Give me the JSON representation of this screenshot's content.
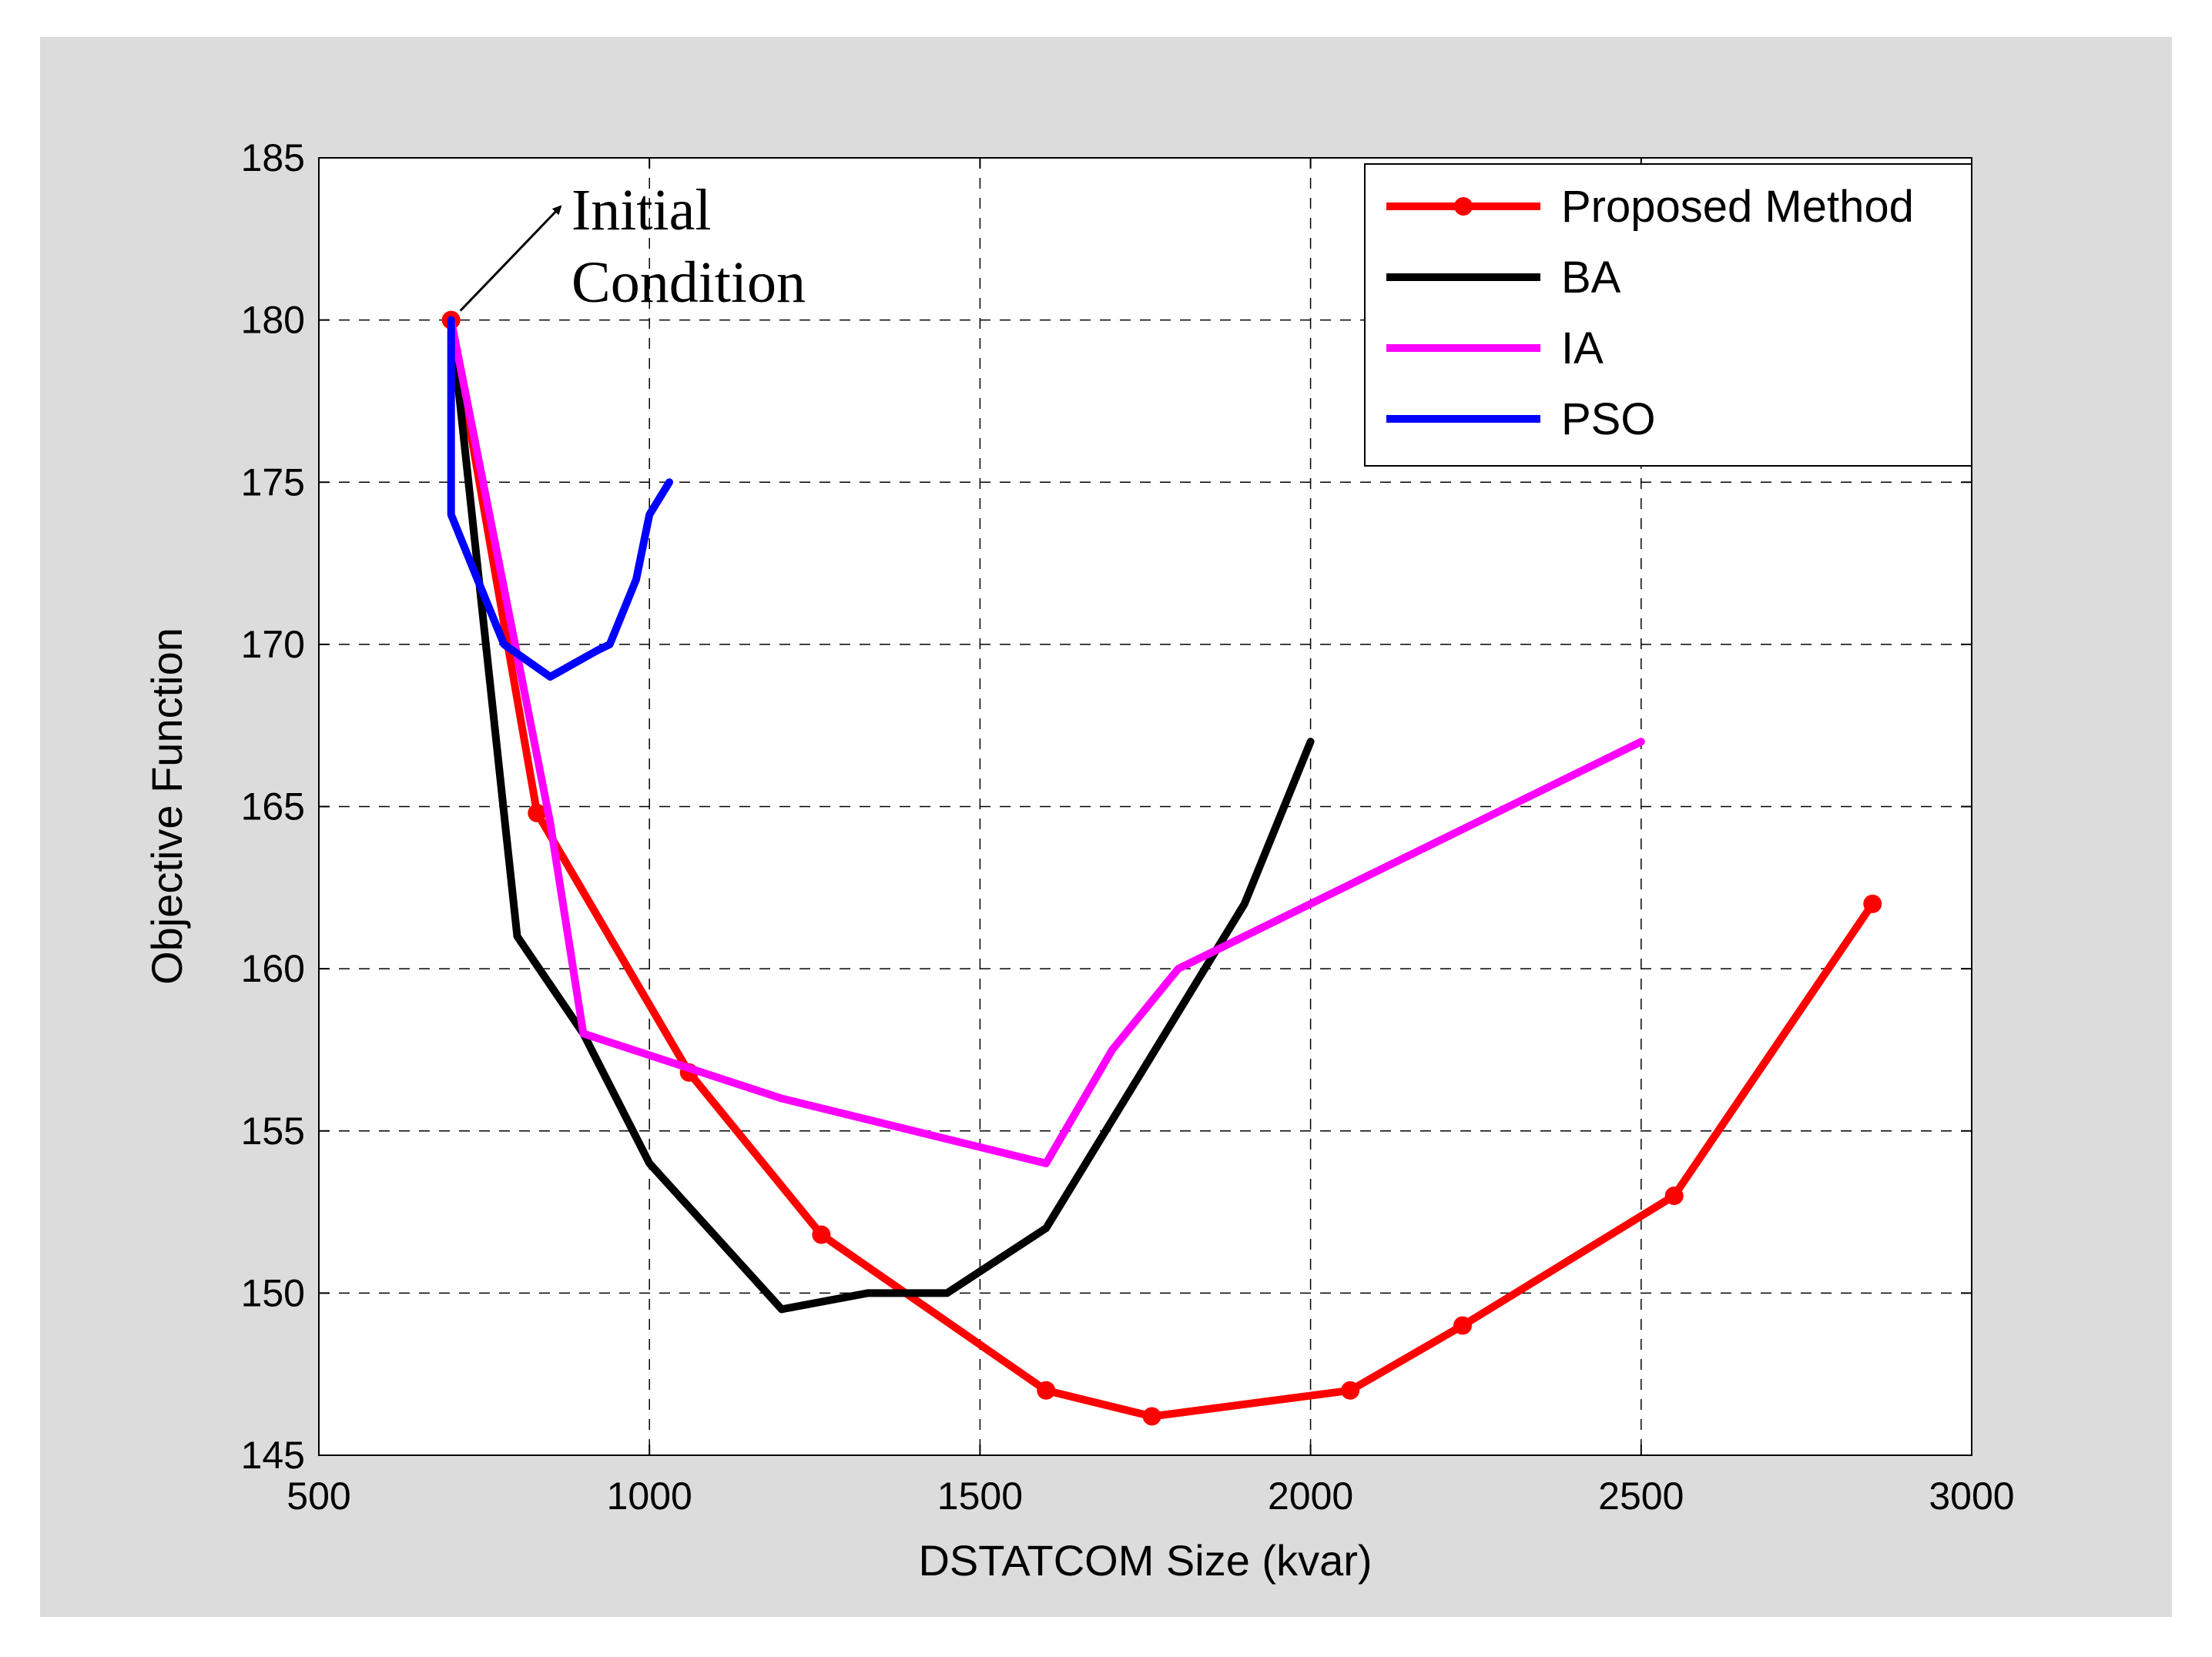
{
  "chart_data": {
    "type": "line",
    "title": "",
    "xlabel": "DSTATCOM Size (kvar)",
    "ylabel": "Objective Function",
    "xlim": [
      500,
      3000
    ],
    "ylim": [
      145,
      185
    ],
    "xticks": [
      500,
      1000,
      1500,
      2000,
      2500,
      3000
    ],
    "yticks": [
      145,
      150,
      155,
      160,
      165,
      170,
      175,
      180,
      185
    ],
    "grid": true,
    "legend_position": "top-right",
    "series": [
      {
        "name": "Proposed Method",
        "color": "#ff0000",
        "marker": "dot",
        "x": [
          700,
          830,
          1060,
          1260,
          1600,
          1760,
          2060,
          2230,
          2550,
          2850
        ],
        "y": [
          180,
          164.8,
          156.8,
          151.8,
          147,
          146.2,
          147,
          149,
          153,
          162
        ]
      },
      {
        "name": "BA",
        "color": "#000000",
        "marker": "none",
        "x": [
          700,
          800,
          900,
          1000,
          1200,
          1330,
          1450,
          1600,
          1750,
          1900,
          2000
        ],
        "y": [
          180,
          161,
          158,
          154,
          149.5,
          150,
          150,
          152,
          157,
          162,
          167
        ]
      },
      {
        "name": "IA",
        "color": "#ff00ff",
        "marker": "none",
        "x": [
          700,
          850,
          900,
          1200,
          1600,
          1700,
          1800,
          2500
        ],
        "y": [
          180,
          164.5,
          158,
          156,
          154,
          157.5,
          160,
          167
        ]
      },
      {
        "name": "PSO",
        "color": "#0000ff",
        "marker": "none",
        "x": [
          700,
          700,
          740,
          780,
          850,
          920,
          940,
          980,
          1000,
          1030
        ],
        "y": [
          180,
          174,
          172,
          170,
          169,
          169.8,
          170,
          172,
          174,
          175
        ]
      }
    ],
    "annotation": {
      "lines": [
        "Initial",
        "Condition"
      ],
      "points_to": {
        "x": 700,
        "y": 180
      }
    }
  }
}
